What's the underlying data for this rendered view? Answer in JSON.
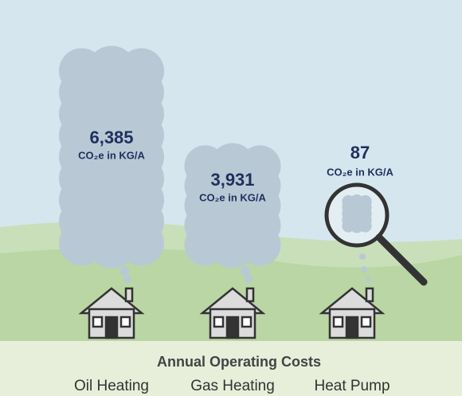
{
  "chart_data": {
    "type": "pictorial",
    "x_label": "Annual Operating Costs",
    "categories": [
      "Oil Heating",
      "Gas Heating",
      "Heat Pump"
    ],
    "values": [
      6385,
      3931,
      87
    ],
    "value_labels": [
      "6,385",
      "3,931",
      "87"
    ],
    "unit": "CO₂e in KG/A",
    "color": "#b8c9d5"
  }
}
